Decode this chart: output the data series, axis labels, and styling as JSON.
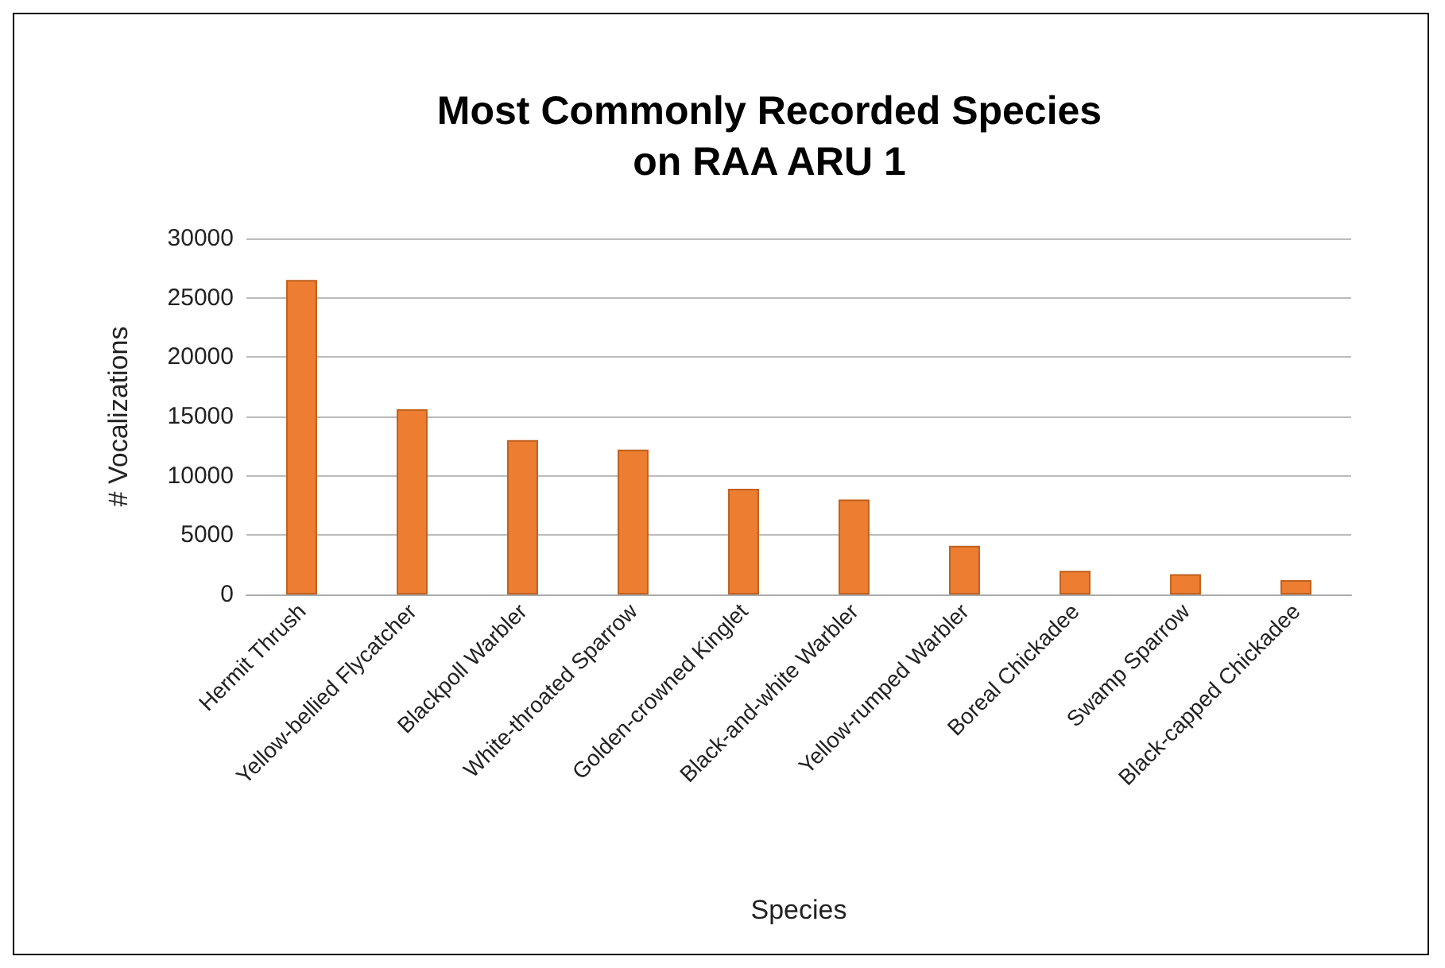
{
  "chart_data": {
    "type": "bar",
    "title": "Most Commonly Recorded Species\non RAA ARU 1",
    "xlabel": "Species",
    "ylabel": "# Vocalizations",
    "categories": [
      "Hermit Thrush",
      "Yellow-bellied Flycatcher",
      "Blackpoll Warbler",
      "White-throated Sparrow",
      "Golden-crowned Kinglet",
      "Black-and-white Warbler",
      "Yellow-rumped Warbler",
      "Boreal Chickadee",
      "Swamp Sparrow",
      "Black-capped Chickadee"
    ],
    "values": [
      26500,
      15600,
      13000,
      12200,
      8900,
      8000,
      4100,
      2000,
      1700,
      1200
    ],
    "color": "#ed7d31",
    "ylim": [
      0,
      30000
    ],
    "yticks": [
      0,
      5000,
      10000,
      15000,
      20000,
      25000,
      30000
    ],
    "grid": "y"
  }
}
